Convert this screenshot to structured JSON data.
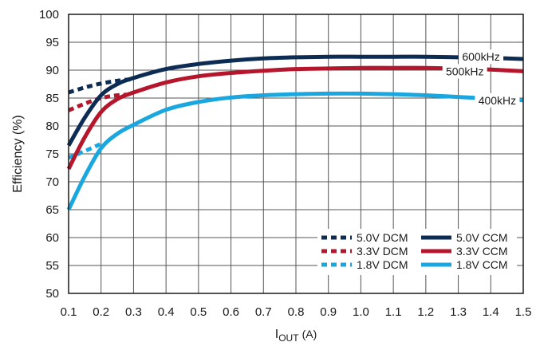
{
  "chart_data": {
    "type": "line",
    "title": "",
    "xlabel_main": "I",
    "xlabel_sub": "OUT",
    "xlabel_unit": "(A)",
    "ylabel": "Efficiency (%)",
    "xlim": [
      0.1,
      1.5
    ],
    "ylim": [
      50,
      100
    ],
    "grid": true,
    "x_ticks": [
      "0.1",
      "0.2",
      "0.3",
      "0.4",
      "0.5",
      "0.6",
      "0.7",
      "0.8",
      "0.9",
      "1.0",
      "1.1",
      "1.2",
      "1.3",
      "1.4",
      "1.5"
    ],
    "y_ticks": [
      "50",
      "55",
      "60",
      "65",
      "70",
      "75",
      "80",
      "85",
      "90",
      "95",
      "100"
    ],
    "legend_position": "bottom-right",
    "series": [
      {
        "name": "5.0V DCM",
        "color": "#0d2c54",
        "style": "dashed",
        "x": [
          0.1,
          0.15,
          0.2,
          0.25,
          0.3
        ],
        "y": [
          86.0,
          86.9,
          87.6,
          88.1,
          88.4
        ]
      },
      {
        "name": "3.3V DCM",
        "color": "#b5162b",
        "style": "dashed",
        "x": [
          0.1,
          0.15,
          0.2,
          0.25,
          0.28
        ],
        "y": [
          82.8,
          84.0,
          85.0,
          85.5,
          85.6
        ]
      },
      {
        "name": "1.8V DCM",
        "color": "#1aa7e0",
        "style": "dashed",
        "x": [
          0.1,
          0.15,
          0.2
        ],
        "y": [
          74.3,
          75.5,
          76.8
        ]
      },
      {
        "name": "5.0V CCM",
        "color": "#0d2c54",
        "style": "solid",
        "x": [
          0.1,
          0.15,
          0.2,
          0.25,
          0.3,
          0.4,
          0.5,
          0.6,
          0.7,
          0.8,
          0.9,
          1.0,
          1.1,
          1.2,
          1.3,
          1.4,
          1.5
        ],
        "y": [
          76.5,
          81.5,
          85.5,
          87.5,
          88.6,
          90.2,
          91.1,
          91.7,
          92.1,
          92.3,
          92.4,
          92.4,
          92.4,
          92.4,
          92.3,
          92.2,
          92.0
        ]
      },
      {
        "name": "3.3V CCM",
        "color": "#b5162b",
        "style": "solid",
        "x": [
          0.1,
          0.15,
          0.2,
          0.25,
          0.3,
          0.4,
          0.5,
          0.6,
          0.7,
          0.8,
          0.9,
          1.0,
          1.1,
          1.2,
          1.3,
          1.4,
          1.5
        ],
        "y": [
          72.3,
          78.0,
          82.5,
          84.8,
          86.0,
          87.8,
          88.9,
          89.5,
          89.9,
          90.2,
          90.3,
          90.4,
          90.4,
          90.4,
          90.3,
          90.1,
          89.8
        ]
      },
      {
        "name": "1.8V CCM",
        "color": "#1aa7e0",
        "style": "solid",
        "x": [
          0.1,
          0.15,
          0.2,
          0.25,
          0.3,
          0.4,
          0.5,
          0.6,
          0.7,
          0.8,
          0.9,
          1.0,
          1.1,
          1.2,
          1.3,
          1.4,
          1.5
        ],
        "y": [
          65.0,
          71.0,
          76.0,
          78.6,
          80.2,
          82.9,
          84.3,
          85.1,
          85.5,
          85.7,
          85.8,
          85.8,
          85.7,
          85.5,
          85.2,
          84.9,
          84.6
        ]
      }
    ],
    "annotations": [
      {
        "text": "600kHz",
        "x": 1.37,
        "y": 92.4
      },
      {
        "text": "500kHz",
        "x": 1.32,
        "y": 89.8
      },
      {
        "text": "400kHz",
        "x": 1.42,
        "y": 84.6
      }
    ]
  }
}
